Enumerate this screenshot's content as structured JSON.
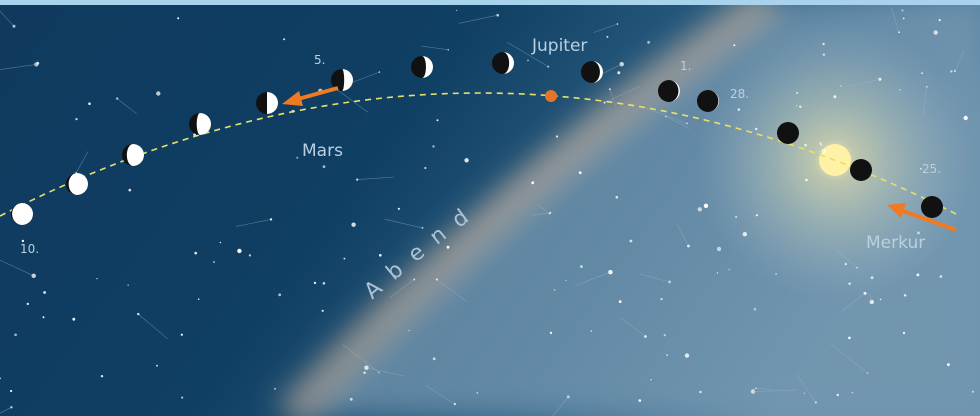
{
  "planets": {
    "jupiter": "Jupiter",
    "mars": "Mars",
    "merkur": "Merkur"
  },
  "time_of_day": "Abend",
  "dates": [
    "10.",
    "5.",
    "1.",
    "28.",
    "25."
  ]
}
